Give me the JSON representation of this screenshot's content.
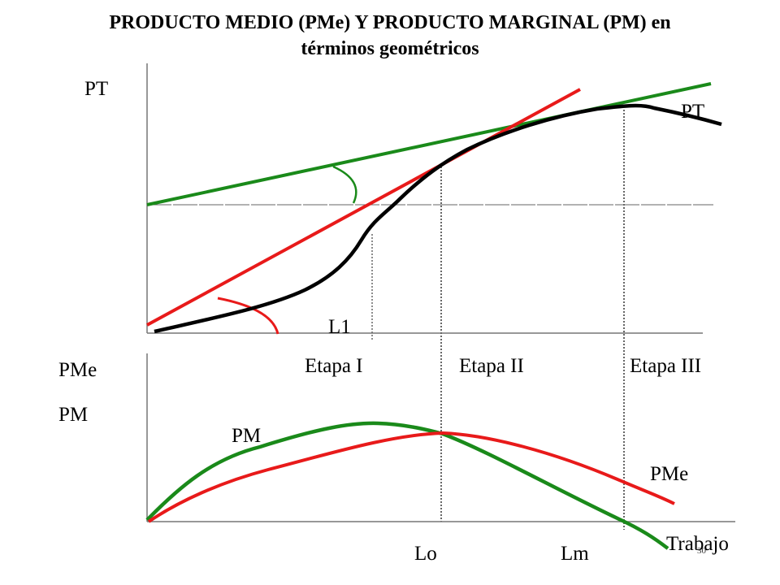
{
  "title": {
    "line1": "PRODUCTO MEDIO (PMe) Y PRODUCTO MARGINAL (PM) en",
    "line2": "términos geométricos"
  },
  "top_panel": {
    "y_axis_label": "PT",
    "curve_label": "PT",
    "input_label": "L1"
  },
  "bottom_panel": {
    "y_axis_label_1": "PMe",
    "y_axis_label_2": "PM",
    "stages": [
      "Etapa I",
      "Etapa II",
      "Etapa III"
    ],
    "pm_label": "PM",
    "pme_label": "PMe",
    "x_axis_label": "Trabajo",
    "points": [
      "Lo",
      "Lm"
    ]
  },
  "slide_number": "30",
  "colors": {
    "total_product": "#000000",
    "marginal_product": "#1a8a1a",
    "average_product": "#e81a1a"
  }
}
